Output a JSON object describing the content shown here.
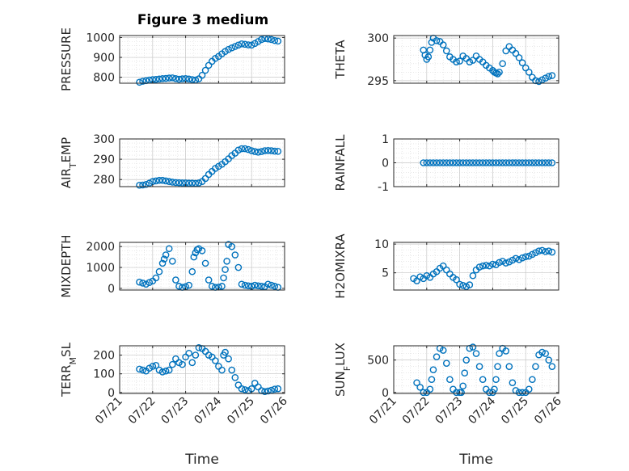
{
  "figure": {
    "title": "Figure 3 medium",
    "marker_color": "#0072BD"
  },
  "chart_data": [
    {
      "type": "scatter",
      "panel": "p1",
      "ylabel": "PRESSURE",
      "xlabel": "",
      "ylim": [
        770,
        1010
      ],
      "yticks": [
        800,
        900,
        1000
      ],
      "yticklabels": [
        "800",
        "900",
        "1000"
      ],
      "xlim": [
        "07/21",
        "07/26"
      ],
      "grid": true,
      "x": [
        21.6,
        21.7,
        21.8,
        21.9,
        22.0,
        22.1,
        22.2,
        22.3,
        22.4,
        22.5,
        22.6,
        22.7,
        22.8,
        22.9,
        23.0,
        23.1,
        23.2,
        23.3,
        23.4,
        23.5,
        23.6,
        23.7,
        23.8,
        23.9,
        24.0,
        24.1,
        24.2,
        24.3,
        24.4,
        24.5,
        24.6,
        24.7,
        24.8,
        24.9,
        25.0,
        25.1,
        25.2,
        25.3,
        25.4,
        25.5,
        25.6,
        25.7,
        25.8
      ],
      "y": [
        775,
        780,
        783,
        786,
        788,
        789,
        791,
        793,
        794,
        796,
        797,
        793,
        790,
        792,
        793,
        791,
        788,
        786,
        792,
        810,
        835,
        860,
        880,
        895,
        905,
        918,
        930,
        940,
        948,
        955,
        962,
        968,
        966,
        963,
        962,
        970,
        980,
        990,
        995,
        993,
        990,
        985,
        982
      ]
    },
    {
      "type": "scatter",
      "panel": "p2",
      "ylabel": "THETA",
      "xlabel": "",
      "ylim": [
        294.7,
        300.3
      ],
      "yticks": [
        295,
        300
      ],
      "yticklabels": [
        "295",
        "300"
      ],
      "xlim": [
        "07/21",
        "07/26"
      ],
      "grid": true,
      "x": [
        21.9,
        21.95,
        22.0,
        22.05,
        22.1,
        22.15,
        22.2,
        22.3,
        22.4,
        22.5,
        22.6,
        22.7,
        22.8,
        22.9,
        23.0,
        23.1,
        23.2,
        23.3,
        23.4,
        23.5,
        23.6,
        23.7,
        23.8,
        23.9,
        24.0,
        24.05,
        24.1,
        24.15,
        24.2,
        24.3,
        24.4,
        24.5,
        24.6,
        24.7,
        24.8,
        24.9,
        25.0,
        25.1,
        25.2,
        25.3,
        25.4,
        25.5,
        25.6,
        25.7,
        25.8
      ],
      "y": [
        298.6,
        298.0,
        297.5,
        297.8,
        298.6,
        299.5,
        300.0,
        299.7,
        299.6,
        299.2,
        298.5,
        297.8,
        297.5,
        297.2,
        297.3,
        297.9,
        297.6,
        297.2,
        297.4,
        297.9,
        297.5,
        297.2,
        296.8,
        296.5,
        296.2,
        296.0,
        295.9,
        295.8,
        296.0,
        297.0,
        298.5,
        299.0,
        298.6,
        298.2,
        297.7,
        297.1,
        296.5,
        296.0,
        295.4,
        295.0,
        294.9,
        295.1,
        295.3,
        295.5,
        295.6
      ]
    },
    {
      "type": "scatter",
      "panel": "p3",
      "ylabel": "AIR_TEMP",
      "xlabel": "",
      "ylim": [
        276.5,
        300
      ],
      "yticks": [
        280,
        290,
        300
      ],
      "yticklabels": [
        "280",
        "290",
        "300"
      ],
      "xlim": [
        "07/21",
        "07/26"
      ],
      "grid": true,
      "x": [
        21.6,
        21.7,
        21.8,
        21.9,
        22.0,
        22.1,
        22.2,
        22.3,
        22.4,
        22.5,
        22.6,
        22.7,
        22.8,
        22.9,
        23.0,
        23.1,
        23.2,
        23.3,
        23.4,
        23.5,
        23.6,
        23.7,
        23.8,
        23.9,
        24.0,
        24.1,
        24.2,
        24.3,
        24.4,
        24.5,
        24.6,
        24.7,
        24.8,
        24.9,
        25.0,
        25.1,
        25.2,
        25.3,
        25.4,
        25.5,
        25.6,
        25.7,
        25.8
      ],
      "y": [
        277.2,
        277.3,
        277.6,
        278.2,
        279.0,
        279.3,
        279.6,
        279.6,
        279.3,
        279.0,
        278.7,
        278.5,
        278.4,
        278.3,
        278.3,
        278.2,
        278.2,
        278.1,
        278.3,
        279.0,
        280.5,
        282.5,
        284.0,
        285.5,
        286.5,
        287.5,
        288.8,
        290.2,
        291.8,
        293.0,
        294.5,
        295.2,
        295.2,
        294.8,
        294.2,
        293.8,
        293.5,
        293.8,
        294.2,
        294.3,
        294.2,
        294.0,
        293.9
      ]
    },
    {
      "type": "scatter",
      "panel": "p4",
      "ylabel": "RAINFALL",
      "xlabel": "",
      "ylim": [
        -1,
        1
      ],
      "yticks": [
        -1,
        0,
        1
      ],
      "yticklabels": [
        "-1",
        "0",
        "1"
      ],
      "xlim": [
        "07/21",
        "07/26"
      ],
      "grid": true,
      "x": [
        21.9,
        22.0,
        22.1,
        22.2,
        22.3,
        22.4,
        22.5,
        22.6,
        22.7,
        22.8,
        22.9,
        23.0,
        23.1,
        23.2,
        23.3,
        23.4,
        23.5,
        23.6,
        23.7,
        23.8,
        23.9,
        24.0,
        24.1,
        24.2,
        24.3,
        24.4,
        24.5,
        24.6,
        24.7,
        24.8,
        24.9,
        25.0,
        25.1,
        25.2,
        25.3,
        25.4,
        25.5,
        25.6,
        25.7,
        25.8
      ],
      "y": [
        0,
        0,
        0,
        0,
        0,
        0,
        0,
        0,
        0,
        0,
        0,
        0,
        0,
        0,
        0,
        0,
        0,
        0,
        0,
        0,
        0,
        0,
        0,
        0,
        0,
        0,
        0,
        0,
        0,
        0,
        0,
        0,
        0,
        0,
        0,
        0,
        0,
        0,
        0,
        0
      ]
    },
    {
      "type": "scatter",
      "panel": "p5",
      "ylabel": "MIXDEPTH",
      "xlabel": "",
      "ylim": [
        -80,
        2200
      ],
      "yticks": [
        0,
        1000,
        2000
      ],
      "yticklabels": [
        "0",
        "1000",
        "2000"
      ],
      "xlim": [
        "07/21",
        "07/26"
      ],
      "grid": true,
      "x": [
        21.6,
        21.7,
        21.8,
        21.9,
        22.0,
        22.1,
        22.2,
        22.3,
        22.35,
        22.4,
        22.5,
        22.6,
        22.7,
        22.8,
        22.9,
        23.0,
        23.1,
        23.2,
        23.25,
        23.3,
        23.35,
        23.4,
        23.5,
        23.6,
        23.7,
        23.8,
        23.9,
        24.0,
        24.1,
        24.15,
        24.2,
        24.25,
        24.3,
        24.4,
        24.5,
        24.6,
        24.7,
        24.8,
        24.9,
        25.0,
        25.1,
        25.2,
        25.3,
        25.4,
        25.5,
        25.6,
        25.7,
        25.8
      ],
      "y": [
        300,
        250,
        200,
        280,
        350,
        500,
        800,
        1200,
        1400,
        1600,
        1900,
        1300,
        400,
        100,
        50,
        80,
        150,
        800,
        1500,
        1700,
        1850,
        1900,
        1800,
        1200,
        400,
        100,
        50,
        60,
        100,
        500,
        900,
        1300,
        2100,
        2000,
        1600,
        1000,
        200,
        150,
        120,
        100,
        150,
        120,
        100,
        80,
        200,
        150,
        100,
        50
      ]
    },
    {
      "type": "scatter",
      "panel": "p6",
      "ylabel": "H2OMIXRA",
      "xlabel": "",
      "ylim": [
        2,
        10.3
      ],
      "yticks": [
        5,
        10
      ],
      "yticklabels": [
        "5",
        "10"
      ],
      "xlim": [
        "07/21",
        "07/26"
      ],
      "grid": true,
      "x": [
        21.6,
        21.7,
        21.8,
        21.9,
        22.0,
        22.1,
        22.2,
        22.3,
        22.4,
        22.5,
        22.6,
        22.7,
        22.8,
        22.9,
        23.0,
        23.1,
        23.2,
        23.3,
        23.4,
        23.5,
        23.6,
        23.7,
        23.8,
        23.9,
        24.0,
        24.1,
        24.2,
        24.3,
        24.4,
        24.5,
        24.6,
        24.7,
        24.8,
        24.9,
        25.0,
        25.1,
        25.2,
        25.3,
        25.4,
        25.5,
        25.6,
        25.7,
        25.8
      ],
      "y": [
        4.0,
        3.6,
        4.3,
        4.0,
        4.5,
        4.2,
        4.8,
        5.2,
        5.8,
        6.2,
        5.5,
        4.8,
        4.2,
        3.8,
        3.0,
        2.8,
        2.6,
        2.9,
        4.5,
        5.5,
        6.0,
        6.2,
        6.3,
        6.2,
        6.5,
        6.4,
        6.8,
        7.0,
        6.7,
        6.9,
        7.2,
        7.5,
        7.3,
        7.6,
        7.8,
        7.9,
        8.2,
        8.5,
        8.8,
        8.9,
        8.7,
        8.8,
        8.6
      ]
    },
    {
      "type": "scatter",
      "panel": "p7",
      "ylabel": "TERR_MSL",
      "xlabel": "Time",
      "ylim": [
        -5,
        250
      ],
      "yticks": [
        0,
        100,
        200
      ],
      "yticklabels": [
        "0",
        "100",
        "200"
      ],
      "xlim": [
        "07/21",
        "07/26"
      ],
      "xticks": [
        21,
        22,
        23,
        24,
        25,
        26
      ],
      "xticklabels": [
        "07/21",
        "07/22",
        "07/23",
        "07/24",
        "07/25",
        "07/26"
      ],
      "grid": true,
      "x": [
        21.6,
        21.7,
        21.8,
        21.9,
        22.0,
        22.1,
        22.2,
        22.3,
        22.4,
        22.5,
        22.6,
        22.7,
        22.8,
        22.9,
        23.0,
        23.1,
        23.2,
        23.3,
        23.4,
        23.5,
        23.6,
        23.7,
        23.8,
        23.9,
        24.0,
        24.1,
        24.15,
        24.2,
        24.3,
        24.4,
        24.5,
        24.6,
        24.7,
        24.8,
        24.9,
        25.0,
        25.1,
        25.2,
        25.3,
        25.4,
        25.5,
        25.6,
        25.7,
        25.8
      ],
      "y": [
        125,
        120,
        115,
        130,
        140,
        145,
        120,
        110,
        115,
        120,
        150,
        180,
        160,
        150,
        190,
        210,
        160,
        200,
        240,
        235,
        220,
        200,
        190,
        170,
        140,
        120,
        200,
        215,
        180,
        120,
        80,
        40,
        20,
        15,
        10,
        20,
        50,
        30,
        10,
        5,
        8,
        12,
        18,
        20
      ]
    },
    {
      "type": "scatter",
      "panel": "p8",
      "ylabel": "SUN_FLUX",
      "xlabel": "Time",
      "ylim": [
        -15,
        720
      ],
      "yticks": [
        0,
        500
      ],
      "yticklabels": [
        "0",
        "500"
      ],
      "xlim": [
        "07/21",
        "07/26"
      ],
      "xticks": [
        21,
        22,
        23,
        24,
        25,
        26
      ],
      "xticklabels": [
        "07/21",
        "07/22",
        "07/23",
        "07/24",
        "07/25",
        "07/26"
      ],
      "grid": true,
      "x": [
        21.7,
        21.8,
        21.9,
        22.0,
        22.1,
        22.15,
        22.2,
        22.3,
        22.4,
        22.5,
        22.6,
        22.7,
        22.8,
        22.9,
        23.0,
        23.05,
        23.1,
        23.15,
        23.2,
        23.3,
        23.4,
        23.5,
        23.6,
        23.7,
        23.8,
        23.9,
        24.0,
        24.05,
        24.1,
        24.15,
        24.2,
        24.3,
        24.4,
        24.5,
        24.6,
        24.7,
        24.8,
        24.9,
        25.0,
        25.1,
        25.2,
        25.3,
        25.4,
        25.5,
        25.6,
        25.7,
        25.8
      ],
      "y": [
        150,
        80,
        0,
        0,
        50,
        200,
        350,
        550,
        680,
        650,
        450,
        200,
        50,
        0,
        0,
        0,
        100,
        300,
        500,
        680,
        700,
        600,
        400,
        200,
        50,
        0,
        0,
        50,
        200,
        400,
        600,
        680,
        640,
        400,
        150,
        30,
        0,
        0,
        0,
        50,
        200,
        400,
        580,
        620,
        600,
        500,
        400
      ]
    }
  ]
}
